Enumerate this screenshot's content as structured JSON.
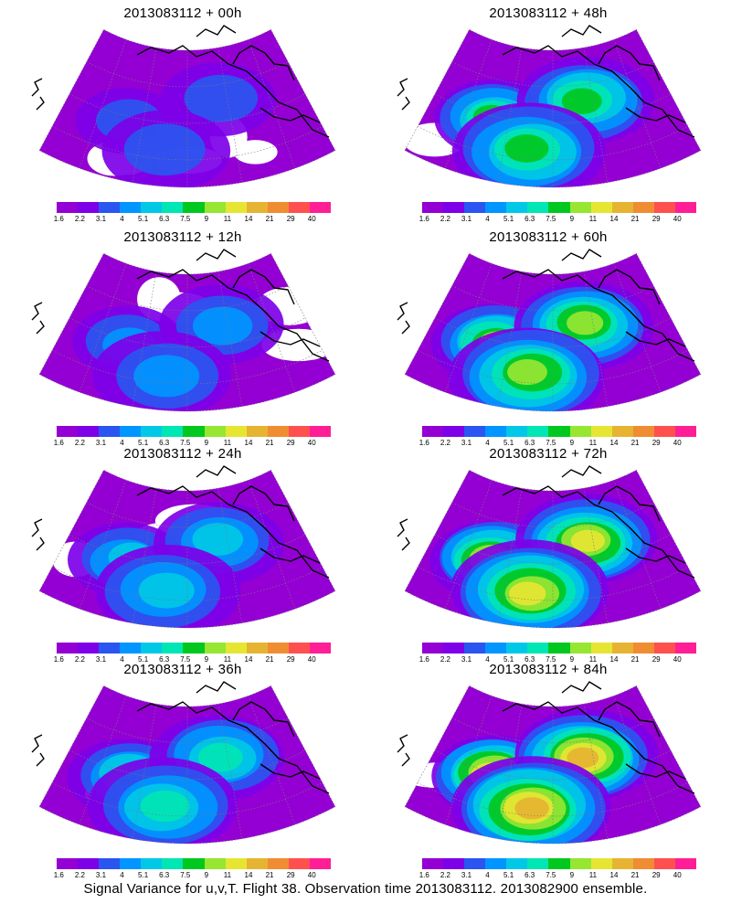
{
  "panels": [
    {
      "title": "2013083112 + 00h",
      "level": 0.15
    },
    {
      "title": "2013083112 + 48h",
      "level": 0.55
    },
    {
      "title": "2013083112 + 12h",
      "level": 0.28
    },
    {
      "title": "2013083112 + 60h",
      "level": 0.65
    },
    {
      "title": "2013083112 + 24h",
      "level": 0.4
    },
    {
      "title": "2013083112 + 72h",
      "level": 0.75
    },
    {
      "title": "2013083112 + 36h",
      "level": 0.48
    },
    {
      "title": "2013083112 + 84h",
      "level": 0.85
    }
  ],
  "colorbar": {
    "ticks": [
      "1.6",
      "2.2",
      "3.1",
      "4",
      "5.1",
      "6.3",
      "7.5",
      "9",
      "11",
      "14",
      "21",
      "29",
      "40"
    ],
    "colors": [
      "#9400d3",
      "#7d00e8",
      "#2a55f0",
      "#0095ff",
      "#00c8e6",
      "#00e6b4",
      "#00c81e",
      "#96e632",
      "#e6e632",
      "#e6b432",
      "#f08c32",
      "#ff5050",
      "#ff1e96"
    ]
  },
  "footer": {
    "caption": "Signal Variance for u,v,T. Flight 38. Observation time 2013083112. 2013082900 ensemble."
  }
}
